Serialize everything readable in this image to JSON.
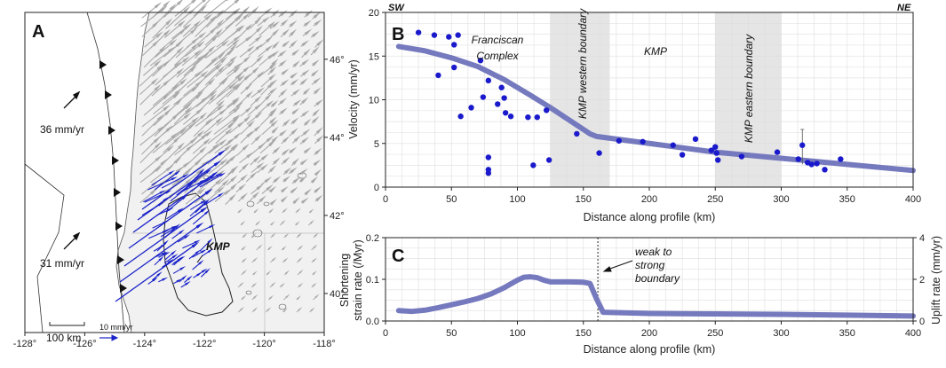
{
  "figure": {
    "colors": {
      "line": "#7579bd",
      "points": "#1a1acc",
      "band": "#dcdcdc",
      "grid": "#e3e3e3",
      "map_arrow_gray": "#a9a9a9",
      "map_arrow_blue": "#1a22c8"
    }
  },
  "chart_data": [
    {
      "id": "A",
      "type": "map",
      "panel_label": "A",
      "x_ticks": [
        "-128°",
        "-126°",
        "-124°",
        "-122°",
        "-120°",
        "-118°"
      ],
      "y_ticks": [
        "40°",
        "42°",
        "44°",
        "46°"
      ],
      "xlim": [
        -128,
        -118
      ],
      "ylim": [
        39,
        47.2
      ],
      "annotations": [
        {
          "text": "36 mm/yr",
          "lon": -126.8,
          "lat": 44.35
        },
        {
          "text": "31 mm/yr",
          "lon": -126.8,
          "lat": 40.9
        },
        {
          "text": "KMP",
          "lon": -122.45,
          "lat": 41.15
        },
        {
          "text": "100 km",
          "lon": -127.2,
          "lat": 39.2
        },
        {
          "text": "10 mm/yr",
          "lon": -124.9,
          "lat": 39.55
        }
      ]
    },
    {
      "id": "B",
      "type": "scatter",
      "panel_label": "B",
      "xlabel": "Distance along profile (km)",
      "ylabel": "Velocity (mm/yr)",
      "xlim": [
        0,
        400
      ],
      "ylim": [
        0,
        20
      ],
      "x_ticks": [
        0,
        50,
        100,
        150,
        200,
        250,
        300,
        350,
        400
      ],
      "y_ticks": [
        0,
        5,
        10,
        15,
        20
      ],
      "corner_labels": {
        "left": "SW",
        "right": "NE"
      },
      "regions": [
        {
          "label": "KMP western boundary",
          "x": [
            125,
            170
          ]
        },
        {
          "label": "KMP eastern boundary",
          "x": [
            250,
            300
          ]
        }
      ],
      "region_labels": [
        {
          "text": "Franciscan",
          "x": 85,
          "y": 17.6
        },
        {
          "text": "Complex",
          "x": 85,
          "y": 16.0
        },
        {
          "text": "KMP",
          "x": 205,
          "y": 16.8
        },
        {
          "text": "KMP western boundary",
          "x": 147.5,
          "y": 10.5
        },
        {
          "text": "KMP eastern boundary",
          "x": 275,
          "y": 10.5
        }
      ],
      "points": [
        [
          25,
          17.7
        ],
        [
          37,
          17.4
        ],
        [
          40,
          12.8
        ],
        [
          48,
          17.2
        ],
        [
          52,
          16.3
        ],
        [
          52,
          13.7
        ],
        [
          55,
          17.4
        ],
        [
          57,
          8.1
        ],
        [
          65,
          9.1
        ],
        [
          72,
          14.5
        ],
        [
          74,
          10.3
        ],
        [
          78,
          12.2
        ],
        [
          78,
          3.4
        ],
        [
          78,
          2.0
        ],
        [
          78,
          1.6
        ],
        [
          85,
          9.5
        ],
        [
          88,
          11.4
        ],
        [
          90,
          10.2
        ],
        [
          91,
          8.5
        ],
        [
          95,
          8.1
        ],
        [
          108,
          8.0
        ],
        [
          112,
          2.5
        ],
        [
          115,
          8.0
        ],
        [
          122,
          8.8
        ],
        [
          124,
          3.1
        ],
        [
          145,
          6.1
        ],
        [
          162,
          3.9
        ],
        [
          177,
          5.3
        ],
        [
          195,
          5.2
        ],
        [
          218,
          4.8
        ],
        [
          225,
          3.7
        ],
        [
          235,
          5.5
        ],
        [
          247,
          4.2
        ],
        [
          250,
          4.6
        ],
        [
          251,
          3.9
        ],
        [
          252,
          3.1
        ],
        [
          270,
          3.5
        ],
        [
          297,
          4.0
        ],
        [
          313,
          3.2
        ],
        [
          316,
          4.8
        ],
        [
          320,
          2.8
        ],
        [
          323,
          2.6
        ],
        [
          327,
          2.7
        ],
        [
          333,
          2.0
        ],
        [
          345,
          3.2
        ]
      ],
      "error_bar": {
        "x": 316,
        "y": 4.8,
        "low": 2.6,
        "high": 6.6
      },
      "model_line": {
        "x": [
          10,
          30,
          50,
          70,
          90,
          110,
          125,
          140,
          155,
          160,
          200,
          250,
          300,
          350,
          400
        ],
        "y": [
          16.1,
          15.6,
          14.8,
          13.8,
          12.3,
          10.5,
          9.1,
          7.6,
          6.1,
          5.8,
          5.0,
          4.0,
          3.3,
          2.6,
          1.9
        ]
      }
    },
    {
      "id": "C",
      "type": "line",
      "panel_label": "C",
      "xlabel": "Distance along profile (km)",
      "ylabel": [
        "Shortening",
        "strain rate (/Myr)"
      ],
      "y2label": "Uplift rate (mm/yr)",
      "xlim": [
        0,
        400
      ],
      "ylim": [
        0,
        0.2
      ],
      "y2lim": [
        0,
        4
      ],
      "x_ticks": [
        0,
        50,
        100,
        150,
        200,
        250,
        300,
        350,
        400
      ],
      "y_ticks": [
        "0.0",
        "0.1",
        "0.2"
      ],
      "y2_ticks": [
        "0",
        "2",
        "4"
      ],
      "boundary_x": 161,
      "annotation": [
        "weak to",
        "strong",
        "boundary"
      ],
      "series": [
        {
          "name": "shortening strain rate",
          "x": [
            10,
            20,
            30,
            40,
            50,
            60,
            70,
            80,
            90,
            100,
            105,
            110,
            115,
            120,
            125,
            130,
            140,
            150,
            155,
            160,
            165,
            200,
            250,
            300,
            350,
            400
          ],
          "y": [
            0.025,
            0.023,
            0.026,
            0.032,
            0.039,
            0.046,
            0.054,
            0.065,
            0.08,
            0.098,
            0.105,
            0.106,
            0.104,
            0.098,
            0.094,
            0.094,
            0.094,
            0.093,
            0.09,
            0.053,
            0.021,
            0.018,
            0.017,
            0.016,
            0.014,
            0.012
          ]
        }
      ]
    }
  ]
}
